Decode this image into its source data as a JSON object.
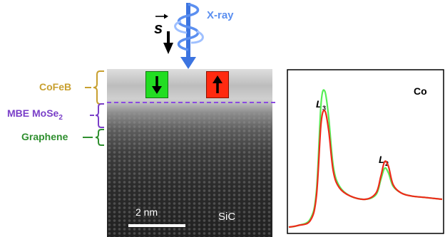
{
  "figure": {
    "labels": {
      "cofeb": "CoFeB",
      "mose2_prefix": "MBE MoSe",
      "mose2_sub": "2",
      "graphene": "Graphene",
      "xray": "X-ray",
      "spin_symbol": "s",
      "scale_bar": "2 nm",
      "substrate": "SiC",
      "element": "Co",
      "peak_l3": "L",
      "peak_l3_sub": "3",
      "peak_l2": "L",
      "peak_l2_sub": "2"
    },
    "colors": {
      "cofeb": "#c8a030",
      "mose2": "#7a3fc8",
      "graphene": "#2f8f2f",
      "xray": "#5b8ff0",
      "spin_down_box": "#22dd22",
      "spin_up_box": "#ff2a10",
      "interface_line": "#8a4ae0"
    },
    "icons": [
      "spin-vector-arrow-icon",
      "xray-helix-icon",
      "spin-down-arrow-icon",
      "spin-up-arrow-icon"
    ]
  },
  "chart_data": {
    "type": "line",
    "title": "Co",
    "xlabel": "",
    "ylabel": "",
    "annotations": [
      {
        "text": "L3",
        "at": "first peak"
      },
      {
        "text": "L2",
        "at": "second peak"
      }
    ],
    "series": [
      {
        "color": "#55ee55",
        "x": [
          0,
          0.06,
          0.14,
          0.18,
          0.21,
          0.235,
          0.26,
          0.29,
          0.33,
          0.4,
          0.5,
          0.57,
          0.6,
          0.625,
          0.65,
          0.68,
          0.73,
          0.8,
          0.9,
          1.0
        ],
        "values": [
          0.03,
          0.04,
          0.08,
          0.25,
          0.78,
          0.86,
          0.7,
          0.4,
          0.28,
          0.22,
          0.2,
          0.23,
          0.32,
          0.39,
          0.36,
          0.28,
          0.24,
          0.22,
          0.21,
          0.2
        ]
      },
      {
        "color": "#ee2a1a",
        "x": [
          0,
          0.06,
          0.14,
          0.18,
          0.21,
          0.235,
          0.26,
          0.29,
          0.33,
          0.4,
          0.5,
          0.57,
          0.6,
          0.625,
          0.65,
          0.68,
          0.73,
          0.8,
          0.9,
          1.0
        ],
        "values": [
          0.03,
          0.04,
          0.07,
          0.22,
          0.66,
          0.74,
          0.62,
          0.37,
          0.27,
          0.22,
          0.2,
          0.24,
          0.34,
          0.43,
          0.4,
          0.29,
          0.24,
          0.22,
          0.21,
          0.2
        ]
      }
    ]
  }
}
